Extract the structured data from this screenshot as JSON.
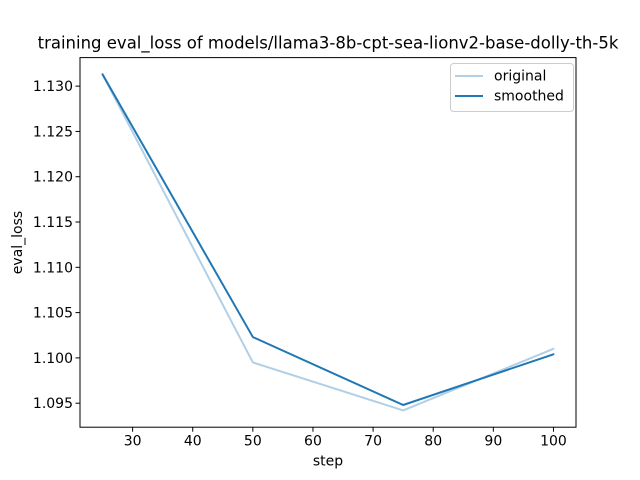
{
  "figure": {
    "background": "#ffffff"
  },
  "chart_data": {
    "type": "line",
    "title": "training eval_loss of models/llama3-8b-cpt-sea-lionv2-base-dolly-th-5k",
    "xlabel": "step",
    "ylabel": "eval_loss",
    "x": [
      25,
      50,
      75,
      100
    ],
    "series": [
      {
        "name": "original",
        "color": "#b1cfe5",
        "values": [
          1.1313,
          1.0995,
          1.0942,
          1.101
        ]
      },
      {
        "name": "smoothed",
        "color": "#1f77b4",
        "values": [
          1.1313,
          1.1023,
          1.0948,
          1.1004
        ]
      }
    ],
    "xticks": [
      30,
      40,
      50,
      60,
      70,
      80,
      90,
      100
    ],
    "ytick_labels": [
      "1.095",
      "1.100",
      "1.105",
      "1.110",
      "1.115",
      "1.120",
      "1.125",
      "1.130"
    ],
    "xlim": [
      21.25,
      103.75
    ],
    "ylim": [
      1.09235,
      1.13315
    ],
    "grid": false,
    "legend": {
      "position": "upper right"
    },
    "axis_color": "#000000",
    "legend_border_color": "#cccccc"
  }
}
